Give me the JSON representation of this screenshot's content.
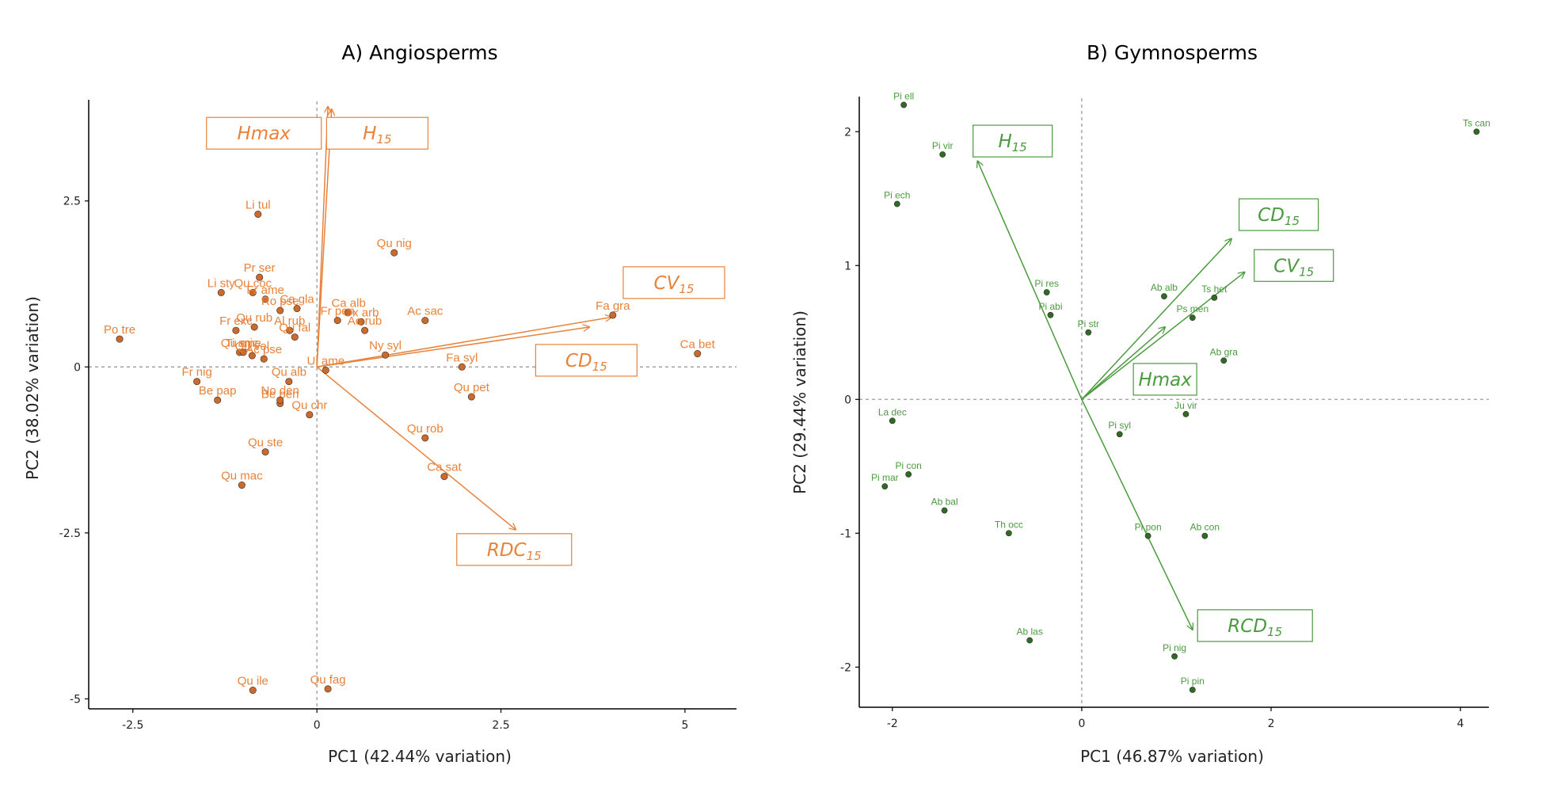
{
  "chart_data": [
    {
      "type": "scatter",
      "title": "A) Angiosperms",
      "xlabel": "PC1 (42.44% variation)",
      "ylabel": "PC2 (38.02% variation)",
      "xlim": [
        -3.1,
        5.7
      ],
      "ylim": [
        -5.15,
        4.0
      ],
      "xticks": [
        {
          "value": -2.5,
          "label": "-2.5"
        },
        {
          "value": 0,
          "label": "0"
        },
        {
          "value": 2.5,
          "label": "2.5"
        },
        {
          "value": 5,
          "label": "5"
        }
      ],
      "yticks": [
        {
          "value": 2.5,
          "label": "2.5"
        },
        {
          "value": 0,
          "label": "0"
        },
        {
          "value": -2.5,
          "label": "-2.5"
        },
        {
          "value": -5,
          "label": "-5"
        }
      ],
      "color": "#E8823A",
      "point_fill": "#C96B31",
      "points": [
        {
          "label": "Po tre",
          "x": -2.68,
          "y": 0.42
        },
        {
          "label": "Li sty",
          "x": -1.3,
          "y": 1.12
        },
        {
          "label": "Qu coc",
          "x": -0.87,
          "y": 1.12
        },
        {
          "label": "Li tul",
          "x": -0.8,
          "y": 2.3
        },
        {
          "label": "Pr ser",
          "x": -0.78,
          "y": 1.35
        },
        {
          "label": "Fr ame",
          "x": -0.7,
          "y": 1.02
        },
        {
          "label": "Ro pse",
          "x": -0.5,
          "y": 0.85
        },
        {
          "label": "Ca gla",
          "x": -0.27,
          "y": 0.88
        },
        {
          "label": "Fr pen",
          "x": 0.28,
          "y": 0.7
        },
        {
          "label": "Ca alb",
          "x": 0.43,
          "y": 0.82
        },
        {
          "label": "Qu nig",
          "x": 1.05,
          "y": 1.72
        },
        {
          "label": "Ac sac",
          "x": 1.47,
          "y": 0.7
        },
        {
          "label": "Fr exc",
          "x": -1.1,
          "y": 0.55
        },
        {
          "label": "Qu mic",
          "x": -1.05,
          "y": 0.22
        },
        {
          "label": "Al rub",
          "x": -0.37,
          "y": 0.55
        },
        {
          "label": "Qu rub",
          "x": -0.85,
          "y": 0.6
        },
        {
          "label": "Ox arb",
          "x": 0.6,
          "y": 0.68
        },
        {
          "label": "Ac rub",
          "x": 0.65,
          "y": 0.55
        },
        {
          "label": "Qu fal",
          "x": -0.3,
          "y": 0.45
        },
        {
          "label": "Ny syl",
          "x": 0.93,
          "y": 0.18
        },
        {
          "label": "Ti ame",
          "x": -1.0,
          "y": 0.22
        },
        {
          "label": "Ac pse",
          "x": -0.72,
          "y": 0.12
        },
        {
          "label": "Qu vel",
          "x": -0.88,
          "y": 0.17
        },
        {
          "label": "Fr nig",
          "x": -1.63,
          "y": -0.22
        },
        {
          "label": "Qu alb",
          "x": -0.38,
          "y": -0.22
        },
        {
          "label": "Ul ame",
          "x": 0.12,
          "y": -0.05
        },
        {
          "label": "Be pap",
          "x": -1.35,
          "y": -0.5
        },
        {
          "label": "Be pen",
          "x": -0.5,
          "y": -0.55
        },
        {
          "label": "No den",
          "x": -0.5,
          "y": -0.5
        },
        {
          "label": "Qu chr",
          "x": -0.1,
          "y": -0.72
        },
        {
          "label": "Fa syl",
          "x": 1.97,
          "y": 0.0
        },
        {
          "label": "Qu pet",
          "x": 2.1,
          "y": -0.45
        },
        {
          "label": "Qu rob",
          "x": 1.47,
          "y": -1.07
        },
        {
          "label": "Qu ste",
          "x": -0.7,
          "y": -1.28
        },
        {
          "label": "Ca sat",
          "x": 1.73,
          "y": -1.65
        },
        {
          "label": "Qu mac",
          "x": -1.02,
          "y": -1.78
        },
        {
          "label": "Fa gra",
          "x": 4.02,
          "y": 0.78
        },
        {
          "label": "Ca bet",
          "x": 5.17,
          "y": 0.2
        },
        {
          "label": "Qu ile",
          "x": -0.87,
          "y": -4.87
        },
        {
          "label": "Qu fag",
          "x": 0.15,
          "y": -4.85
        }
      ],
      "vectors": [
        {
          "name": "Hmax",
          "x": 0.15,
          "y": 3.92
        },
        {
          "name": "H15",
          "x": 0.2,
          "y": 3.88
        },
        {
          "name": "CV15",
          "x": 4.0,
          "y": 0.75
        },
        {
          "name": "CD15",
          "x": 3.7,
          "y": 0.6
        },
        {
          "name": "RDC15",
          "x": 2.7,
          "y": -2.45
        }
      ],
      "vector_boxes": [
        {
          "main": "Hmax",
          "sub": "",
          "x": -0.72,
          "y": 3.52
        },
        {
          "main": "H",
          "sub": "15",
          "x": 0.82,
          "y": 3.52
        },
        {
          "main": "CV",
          "sub": "15",
          "x": 4.85,
          "y": 1.27
        },
        {
          "main": "CD",
          "sub": "15",
          "x": 3.66,
          "y": 0.1
        },
        {
          "main": "RDC",
          "sub": "15",
          "x": 2.68,
          "y": -2.75
        }
      ]
    },
    {
      "type": "scatter",
      "title": "B) Gymnosperms",
      "xlabel": "PC1 (46.87% variation)",
      "ylabel": "PC2 (29.44% variation)",
      "xlim": [
        -2.35,
        4.3
      ],
      "ylim": [
        -2.3,
        2.25
      ],
      "xticks": [
        {
          "value": -2,
          "label": "-2"
        },
        {
          "value": 0,
          "label": "0"
        },
        {
          "value": 2,
          "label": "2"
        },
        {
          "value": 4,
          "label": "4"
        }
      ],
      "yticks": [
        {
          "value": 2,
          "label": "2"
        },
        {
          "value": 1,
          "label": "1"
        },
        {
          "value": 0,
          "label": "0"
        },
        {
          "value": -1,
          "label": "-1"
        },
        {
          "value": -2,
          "label": "-2"
        }
      ],
      "color": "#4A9A3E",
      "point_fill": "#2F6A2A",
      "points": [
        {
          "label": "Pi ell",
          "x": -1.88,
          "y": 2.2
        },
        {
          "label": "Pi vir",
          "x": -1.47,
          "y": 1.83
        },
        {
          "label": "Pi ech",
          "x": -1.95,
          "y": 1.46
        },
        {
          "label": "Pi res",
          "x": -0.37,
          "y": 0.8
        },
        {
          "label": "Pi abi",
          "x": -0.33,
          "y": 0.63
        },
        {
          "label": "Pi str",
          "x": 0.07,
          "y": 0.5
        },
        {
          "label": "Ab alb",
          "x": 0.87,
          "y": 0.77
        },
        {
          "label": "Ts het",
          "x": 1.4,
          "y": 0.76
        },
        {
          "label": "Ps men",
          "x": 1.17,
          "y": 0.61
        },
        {
          "label": "Ab gra",
          "x": 1.5,
          "y": 0.29
        },
        {
          "label": "Ts can",
          "x": 4.17,
          "y": 2.0
        },
        {
          "label": "La dec",
          "x": -2.0,
          "y": -0.16
        },
        {
          "label": "Ju vir",
          "x": 1.1,
          "y": -0.11
        },
        {
          "label": "Pi syl",
          "x": 0.4,
          "y": -0.26
        },
        {
          "label": "Pi con",
          "x": -1.83,
          "y": -0.56
        },
        {
          "label": "Pi mar",
          "x": -2.08,
          "y": -0.65
        },
        {
          "label": "Ab bal",
          "x": -1.45,
          "y": -0.83
        },
        {
          "label": "Th occ",
          "x": -0.77,
          "y": -1.0
        },
        {
          "label": "Pi pon",
          "x": 0.7,
          "y": -1.02
        },
        {
          "label": "Ab con",
          "x": 1.3,
          "y": -1.02
        },
        {
          "label": "Ab las",
          "x": -0.55,
          "y": -1.8
        },
        {
          "label": "Pi nig",
          "x": 0.98,
          "y": -1.92
        },
        {
          "label": "Pi pin",
          "x": 1.17,
          "y": -2.17
        }
      ],
      "vectors": [
        {
          "name": "H15",
          "x": -1.1,
          "y": 1.78
        },
        {
          "name": "CD15",
          "x": 1.58,
          "y": 1.2
        },
        {
          "name": "CV15",
          "x": 1.72,
          "y": 0.95
        },
        {
          "name": "Hmax",
          "x": 0.88,
          "y": 0.54
        },
        {
          "name": "RCD15",
          "x": 1.17,
          "y": -1.72
        }
      ],
      "vector_boxes": [
        {
          "main": "H",
          "sub": "15",
          "x": -0.73,
          "y": 1.93
        },
        {
          "main": "CD",
          "sub": "15",
          "x": 2.08,
          "y": 1.38
        },
        {
          "main": "CV",
          "sub": "15",
          "x": 2.24,
          "y": 1.0
        },
        {
          "main": "Hmax",
          "sub": "",
          "x": 0.88,
          "y": 0.15
        },
        {
          "main": "RCD",
          "sub": "15",
          "x": 1.83,
          "y": -1.69
        }
      ]
    }
  ]
}
